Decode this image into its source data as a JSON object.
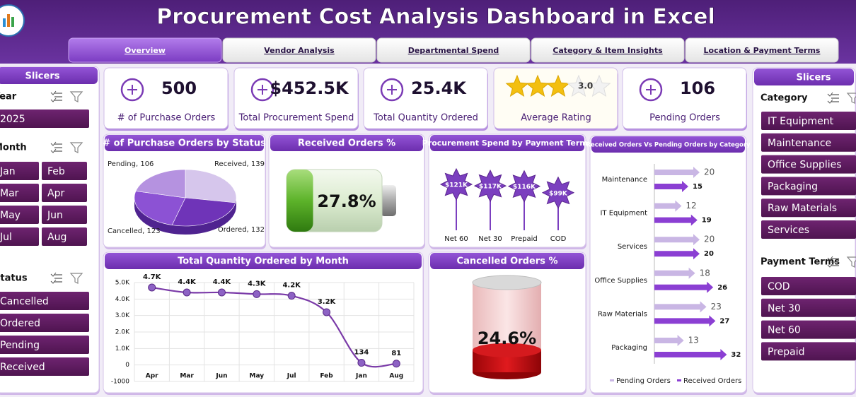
{
  "header": {
    "title": "Procurement Cost Analysis Dashboard in Excel"
  },
  "tabs": [
    "Overview",
    "Vendor Analysis",
    "Departmental Spend",
    "Category & Item Insights",
    "Location & Payment Terms"
  ],
  "left_slicers": {
    "title": "Slicers",
    "groups": [
      {
        "label": "Year",
        "items": [
          "2025"
        ]
      },
      {
        "label": "Month",
        "items": [
          "Jan",
          "Feb",
          "Mar",
          "Apr",
          "May",
          "Jun",
          "Jul",
          "Aug"
        ]
      },
      {
        "label": "Status",
        "items": [
          "Cancelled",
          "Ordered",
          "Pending",
          "Received"
        ]
      }
    ]
  },
  "right_slicers": {
    "title": "Slicers",
    "groups": [
      {
        "label": "Category",
        "items": [
          "IT Equipment",
          "Maintenance",
          "Office Supplies",
          "Packaging",
          "Raw Materials",
          "Services"
        ]
      },
      {
        "label": "Payment Terms",
        "items": [
          "COD",
          "Net 30",
          "Net 60",
          "Prepaid"
        ]
      }
    ]
  },
  "kpis": [
    {
      "value": "500",
      "label": "# of Purchase Orders"
    },
    {
      "value": "$452.5K",
      "label": "Total Procurement Spend"
    },
    {
      "value": "25.4K",
      "label": "Total Quantity Ordered"
    },
    {
      "value": 3,
      "value_label": "3.0",
      "label": "Average Rating"
    },
    {
      "value": "106",
      "label": "Pending Orders"
    }
  ],
  "chart_data": [
    {
      "type": "pie",
      "title": "# of Purchase Orders by Status",
      "values": [
        139,
        132,
        123,
        106
      ],
      "value_labels": [
        "Received, 139",
        "Ordered, 132",
        "Cancelled, 123",
        "Pending, 106"
      ],
      "colors": [
        "#d6c6ec",
        "#6f34b8",
        "#8c52d4",
        "#b592e0"
      ]
    },
    {
      "type": "battery",
      "title": "Received Orders %",
      "values": [
        27.8
      ],
      "value_labels": [
        "27.8%"
      ],
      "color": "#5db32a"
    },
    {
      "type": "lollipop",
      "title": "Procurement Spend by Payment Terms",
      "categories": [
        "Net 60",
        "Net 30",
        "Prepaid",
        "COD"
      ],
      "values": [
        121000,
        117000,
        116000,
        99000
      ],
      "value_labels": [
        "$121K",
        "$117K",
        "$116K",
        "$99K"
      ],
      "color": "#7b3fbf"
    },
    {
      "type": "hbar",
      "title": "Received Orders Vs Pending Orders by Category",
      "categories": [
        "Maintenance",
        "IT Equipment",
        "Services",
        "Office Supplies",
        "Raw Materials",
        "Packaging"
      ],
      "series": [
        {
          "name": "Pending Orders",
          "color": "#c9b6e4",
          "values": [
            20,
            12,
            20,
            18,
            23,
            13
          ]
        },
        {
          "name": "Received Orders",
          "color": "#8b3fd3",
          "values": [
            15,
            19,
            20,
            26,
            27,
            32
          ]
        }
      ],
      "legend": "bottom"
    },
    {
      "type": "line",
      "title": "Total Quantity Ordered by Month",
      "categories": [
        "Apr",
        "Mar",
        "Jun",
        "May",
        "Jul",
        "Feb",
        "Jan",
        "Aug"
      ],
      "values": [
        4700,
        4400,
        4400,
        4300,
        4200,
        3200,
        134,
        81
      ],
      "value_labels": [
        "4.7K",
        "4.4K",
        "4.4K",
        "4.3K",
        "4.2K",
        "3.2K",
        "134",
        "81"
      ],
      "ylim": [
        -1000,
        5000
      ],
      "yticks": [
        {
          "value": 5000,
          "label": "5.0K"
        },
        {
          "value": 4000,
          "label": "4.0K"
        },
        {
          "value": 3000,
          "label": "3.0K"
        },
        {
          "value": 2000,
          "label": "2.0K"
        },
        {
          "value": 1000,
          "label": "1.0K"
        },
        0,
        -1000
      ],
      "grid": true,
      "color": "#7a3aa8"
    },
    {
      "type": "cylinder",
      "title": "Cancelled Orders %",
      "values": [
        24.6
      ],
      "value_labels": [
        "24.6%"
      ],
      "color": "#c40d12"
    }
  ]
}
